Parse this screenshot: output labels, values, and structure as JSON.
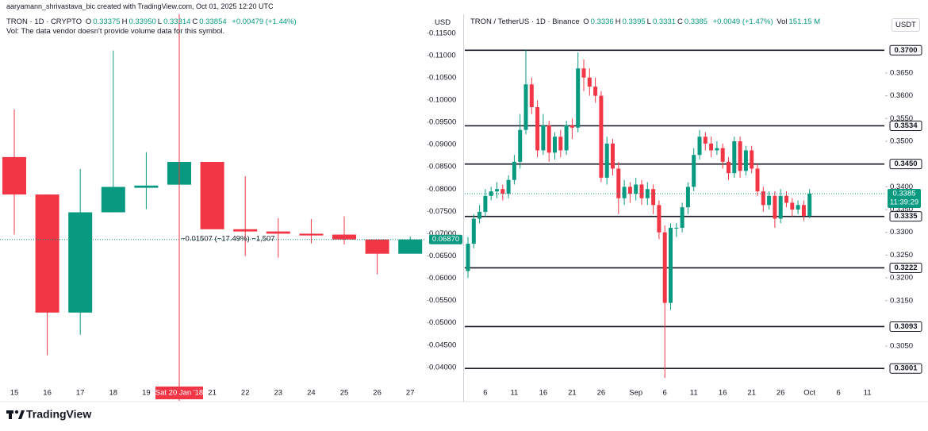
{
  "header": {
    "credit": "aaryamann_shrivastava_bic created with TradingView.com, Oct 01, 2025 12:20 UTC",
    "volume_note": "Vol: The data vendor doesn't provide volume data for this symbol."
  },
  "footer": {
    "brand": "TradingView"
  },
  "chart_data": [
    {
      "type": "candlestick",
      "title": "TRON · 1D · CRYPTO",
      "currency": "USD",
      "legend_values": [
        {
          "label": "O",
          "value": "0.33375"
        },
        {
          "label": "H",
          "value": "0.33950"
        },
        {
          "label": "L",
          "value": "0.33314"
        },
        {
          "label": "C",
          "value": "0.33854"
        }
      ],
      "legend_change": "+0.00479 (+1.44%)",
      "up_color": "#089981",
      "down_color": "#f23645",
      "categories": [
        "15",
        "16",
        "17",
        "18",
        "19",
        null,
        "21",
        "22",
        "23",
        "24",
        "25",
        "26",
        "27"
      ],
      "open": [
        0.0872,
        0.0788,
        0.0523,
        0.0748,
        0.0803,
        0.081,
        0.0861,
        0.071,
        0.0705,
        0.07,
        0.0698,
        0.0687,
        0.0655
      ],
      "high": [
        0.0979,
        0.0788,
        0.0845,
        0.1111,
        0.0883,
        0.0886,
        0.0861,
        0.0829,
        0.0735,
        0.0733,
        0.0739,
        0.0687,
        0.0694
      ],
      "low": [
        0.0698,
        0.0427,
        0.0473,
        0.0748,
        0.0755,
        0.0805,
        0.071,
        0.065,
        0.0646,
        0.0678,
        0.0676,
        0.0609,
        0.0655
      ],
      "close": [
        0.0788,
        0.0523,
        0.0748,
        0.0805,
        0.0808,
        0.0861,
        0.071,
        0.0705,
        0.07,
        0.0696,
        0.0687,
        0.0655,
        0.0687
      ],
      "ylim": [
        0.0373,
        0.1171
      ],
      "yticks": [
        {
          "value": 0.04,
          "label": "0.04000"
        },
        {
          "value": 0.045,
          "label": "0.04500"
        },
        {
          "value": 0.05,
          "label": "0.05000"
        },
        {
          "value": 0.055,
          "label": "0.05500"
        },
        {
          "value": 0.06,
          "label": "0.06000"
        },
        {
          "value": 0.065,
          "label": "0.06500"
        },
        {
          "value": 0.07,
          "label": "0.07000"
        },
        {
          "value": 0.075,
          "label": "0.07500"
        },
        {
          "value": 0.08,
          "label": "0.08000"
        },
        {
          "value": 0.085,
          "label": "0.08500"
        },
        {
          "value": 0.09,
          "label": "0.09000"
        },
        {
          "value": 0.095,
          "label": "0.09500"
        },
        {
          "value": 0.1,
          "label": "0.10000"
        },
        {
          "value": 0.105,
          "label": "0.10500"
        },
        {
          "value": 0.11,
          "label": "0.11000"
        },
        {
          "value": 0.115,
          "label": "0.11500"
        }
      ],
      "last_price": {
        "value": 0.0687,
        "label": "0.06870"
      },
      "crosshair": {
        "index": 5,
        "label": "Sat 20 Jan '18"
      },
      "measure_label": "−0.01507 (−17.49%) −1,507",
      "grid": false
    },
    {
      "type": "candlestick",
      "title": "TRON / TetherUS · 1D · Binance",
      "currency": "USDT",
      "legend_values": [
        {
          "label": "O",
          "value": "0.3336"
        },
        {
          "label": "H",
          "value": "0.3395"
        },
        {
          "label": "L",
          "value": "0.3331"
        },
        {
          "label": "C",
          "value": "0.3385"
        }
      ],
      "legend_change": "+0.0049 (+1.47%)",
      "volume_label": "Vol",
      "volume_value": "151.15 M",
      "up_color": "#089981",
      "down_color": "#f23645",
      "categories": [
        null,
        null,
        null,
        "6",
        null,
        null,
        null,
        null,
        "11",
        null,
        null,
        null,
        null,
        "16",
        null,
        null,
        null,
        null,
        "21",
        null,
        null,
        null,
        null,
        "26",
        null,
        null,
        null,
        null,
        null,
        "Sep",
        null,
        null,
        null,
        null,
        "6",
        null,
        null,
        null,
        null,
        "11",
        null,
        null,
        null,
        null,
        "16",
        null,
        null,
        null,
        null,
        "21",
        null,
        null,
        null,
        null,
        "26",
        null,
        null,
        null,
        null,
        "Oct",
        null,
        null,
        null,
        null,
        "6",
        null,
        null,
        null,
        null,
        "11"
      ],
      "open": [
        0.3215,
        0.3275,
        0.333,
        0.3345,
        0.338,
        0.339,
        0.3395,
        0.3385,
        0.3415,
        0.3455,
        0.3525,
        0.3625,
        0.3575,
        0.348,
        0.3535,
        0.3475,
        0.351,
        0.348,
        0.3535,
        0.353,
        0.366,
        0.364,
        0.362,
        0.36,
        0.342,
        0.3495,
        0.344,
        0.3375,
        0.34,
        0.3385,
        0.3405,
        0.3375,
        0.3395,
        0.336,
        0.33,
        0.3145,
        0.331,
        0.331,
        0.3355,
        0.34,
        0.347,
        0.351,
        0.3495,
        0.348,
        0.3485,
        0.3455,
        0.343,
        0.35,
        0.3435,
        0.348,
        0.344,
        0.339,
        0.336,
        0.338,
        0.333,
        0.338,
        0.3365,
        0.335,
        0.336,
        0.3336,
        null,
        null,
        null,
        null,
        null,
        null,
        null,
        null,
        null,
        null
      ],
      "high": [
        0.329,
        0.334,
        0.336,
        0.3395,
        0.34,
        0.341,
        0.3405,
        0.3425,
        0.347,
        0.356,
        0.37,
        0.364,
        0.359,
        0.356,
        0.3545,
        0.352,
        0.3525,
        0.3545,
        0.355,
        0.3695,
        0.368,
        0.366,
        0.364,
        0.361,
        0.351,
        0.3505,
        0.3455,
        0.3415,
        0.341,
        0.342,
        0.3415,
        0.341,
        0.3405,
        0.337,
        0.3315,
        0.332,
        0.332,
        0.3365,
        0.341,
        0.3485,
        0.3525,
        0.352,
        0.351,
        0.35,
        0.3495,
        0.3465,
        0.351,
        0.351,
        0.349,
        0.349,
        0.345,
        0.34,
        0.339,
        0.339,
        0.3395,
        0.339,
        0.3375,
        0.337,
        0.337,
        0.3395,
        null,
        null,
        null,
        null,
        null,
        null,
        null,
        null,
        null,
        null
      ],
      "low": [
        0.32,
        0.3265,
        0.332,
        0.3335,
        0.337,
        0.3375,
        0.337,
        0.3375,
        0.3405,
        0.344,
        0.3515,
        0.356,
        0.3465,
        0.347,
        0.3455,
        0.346,
        0.3465,
        0.347,
        0.3505,
        0.352,
        0.361,
        0.36,
        0.3585,
        0.341,
        0.3405,
        0.3425,
        0.334,
        0.336,
        0.3365,
        0.337,
        0.336,
        0.336,
        0.334,
        0.3285,
        0.298,
        0.313,
        0.329,
        0.33,
        0.334,
        0.339,
        0.346,
        0.348,
        0.3465,
        0.347,
        0.344,
        0.3415,
        0.342,
        0.342,
        0.3425,
        0.343,
        0.338,
        0.3345,
        0.335,
        0.331,
        0.332,
        0.3355,
        0.3335,
        0.334,
        0.3325,
        0.3331,
        null,
        null,
        null,
        null,
        null,
        null,
        null,
        null,
        null,
        null
      ],
      "close": [
        0.3275,
        0.333,
        0.3345,
        0.338,
        0.339,
        0.3395,
        0.3385,
        0.3415,
        0.3455,
        0.3525,
        0.3625,
        0.3575,
        0.348,
        0.3535,
        0.3475,
        0.351,
        0.348,
        0.3535,
        0.353,
        0.366,
        0.364,
        0.362,
        0.36,
        0.342,
        0.3495,
        0.344,
        0.3375,
        0.34,
        0.3385,
        0.3405,
        0.3375,
        0.3395,
        0.336,
        0.33,
        0.3145,
        0.331,
        0.331,
        0.3355,
        0.34,
        0.347,
        0.351,
        0.3495,
        0.348,
        0.3485,
        0.3455,
        0.343,
        0.35,
        0.3435,
        0.348,
        0.344,
        0.339,
        0.336,
        0.338,
        0.333,
        0.338,
        0.3365,
        0.335,
        0.336,
        0.3336,
        0.3385,
        null,
        null,
        null,
        null,
        null,
        null,
        null,
        null,
        null,
        null
      ],
      "ylim": [
        0.2977,
        0.3758
      ],
      "yticks": [
        {
          "value": 0.305,
          "label": "0.3050"
        },
        {
          "value": 0.315,
          "label": "0.3150"
        },
        {
          "value": 0.32,
          "label": "0.3200"
        },
        {
          "value": 0.325,
          "label": "0.3250"
        },
        {
          "value": 0.33,
          "label": "0.3300"
        },
        {
          "value": 0.335,
          "label": "0.3350"
        },
        {
          "value": 0.34,
          "label": "0.3400"
        },
        {
          "value": 0.35,
          "label": "0.3500"
        },
        {
          "value": 0.355,
          "label": "0.3550"
        },
        {
          "value": 0.36,
          "label": "0.3600"
        },
        {
          "value": 0.365,
          "label": "0.3650"
        }
      ],
      "levels": [
        {
          "value": 0.37,
          "label": "0.3700"
        },
        {
          "value": 0.3534,
          "label": "0.3534"
        },
        {
          "value": 0.345,
          "label": "0.3450"
        },
        {
          "value": 0.3335,
          "label": "0.3335"
        },
        {
          "value": 0.3222,
          "label": "0.3222"
        },
        {
          "value": 0.3093,
          "label": "0.3093"
        },
        {
          "value": 0.3001,
          "label": "0.3001"
        }
      ],
      "last_price": {
        "value": 0.3385,
        "label": "0.3385"
      },
      "countdown": "11:39:29",
      "grid": false
    }
  ]
}
